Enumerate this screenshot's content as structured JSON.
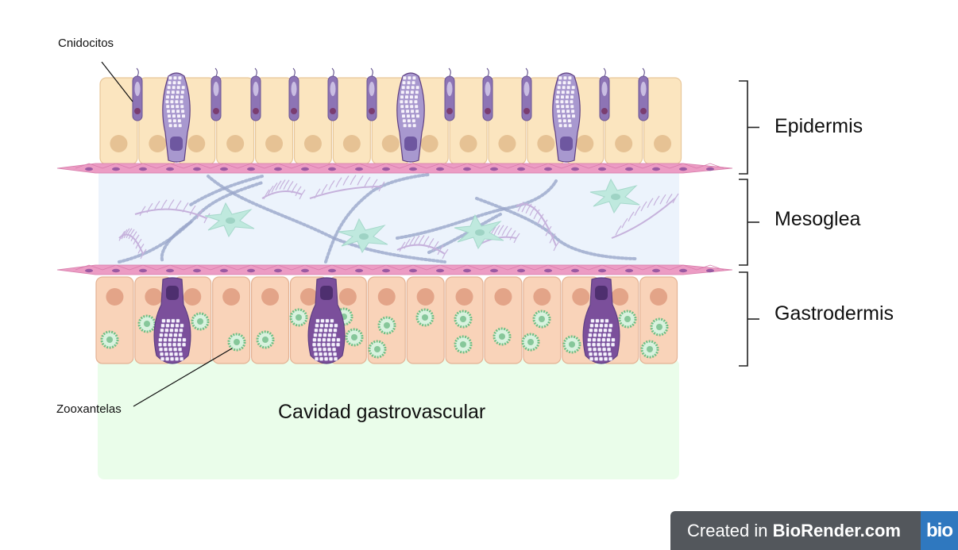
{
  "labels": {
    "cnidocitos": "Cnidocitos",
    "zooxantelas": "Zooxantelas",
    "epidermis": "Epidermis",
    "mesoglea": "Mesoglea",
    "gastrodermis": "Gastrodermis",
    "cavidad": "Cavidad gastrovascular"
  },
  "watermark": {
    "prefix": "Created in ",
    "brand": "BioRender.com",
    "logo": "bio"
  },
  "colors": {
    "epidermis_cell": "#fbe5bf",
    "epidermis_nucleus": "#e6c294",
    "gastro_cell": "#f9d3b9",
    "gastro_nucleus": "#e3a488",
    "mesoglea": "#ecf3fc",
    "cavity": "#eafdea",
    "membrane": "#ec9cc4",
    "cnidocyte": "#8d74b5",
    "zooxanthella": "#6fbf84",
    "amoebocyte": "#bfe9de"
  },
  "icons": [
    "cnidocyte-icon",
    "zooxanthella-icon",
    "amoebocyte-icon",
    "mucus-cell-icon",
    "gland-cell-icon"
  ]
}
